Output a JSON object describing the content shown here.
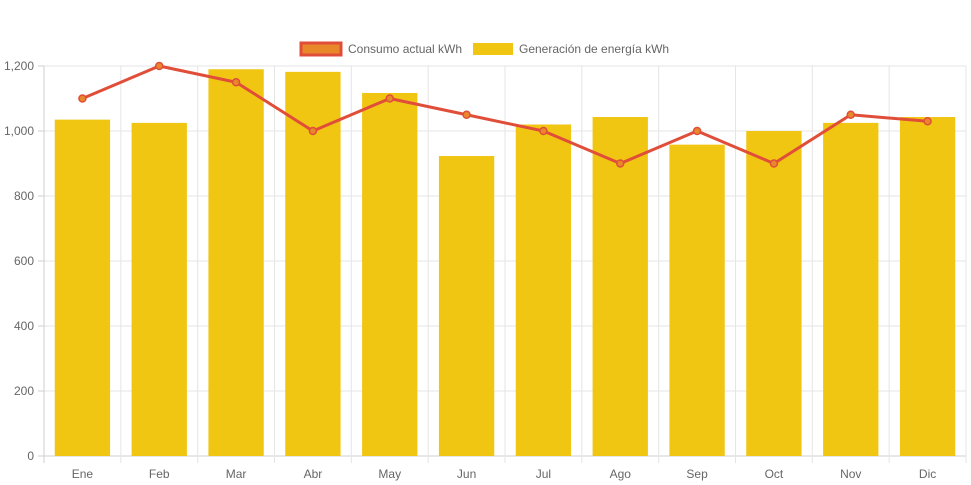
{
  "chart_data": {
    "type": "bar",
    "categories": [
      "Ene",
      "Feb",
      "Mar",
      "Abr",
      "May",
      "Jun",
      "Jul",
      "Ago",
      "Sep",
      "Oct",
      "Nov",
      "Dic"
    ],
    "series": [
      {
        "name": "Consumo actual kWh",
        "type": "line",
        "color": "#e04e39",
        "values": [
          1100,
          1200,
          1150,
          1000,
          1100,
          1050,
          1000,
          900,
          1000,
          900,
          1050,
          1030
        ]
      },
      {
        "name": "Generación de energía kWh",
        "type": "bar",
        "color": "#f0c613",
        "values": [
          1035,
          1025,
          1190,
          1182,
          1117,
          923,
          1020,
          1043,
          958,
          1000,
          1025,
          1043
        ]
      }
    ],
    "ylim": [
      0,
      1200
    ],
    "yticks": [
      "0",
      "200",
      "400",
      "600",
      "800",
      "1,000",
      "1,200"
    ],
    "grid": true,
    "legend_position": "top"
  }
}
